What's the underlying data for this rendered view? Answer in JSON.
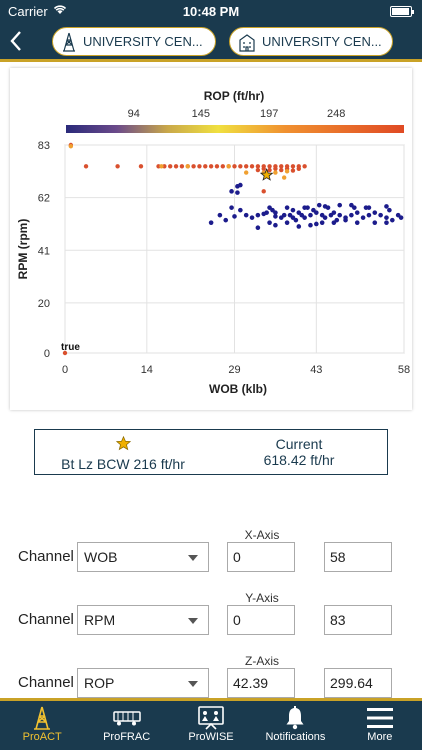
{
  "status_bar": {
    "carrier": "Carrier",
    "time": "10:48 PM"
  },
  "header": {
    "pills": [
      "UNIVERSITY CEN...",
      "UNIVERSITY CEN..."
    ]
  },
  "chart_data": {
    "type": "scatter",
    "title": "ROP (ft/hr)",
    "colorbar_ticks": [
      94,
      145,
      197,
      248
    ],
    "colorbar_range": [
      42.39,
      299.64
    ],
    "xlabel": "WOB (klb)",
    "ylabel": "RPM (rpm)",
    "xlim": [
      0,
      58
    ],
    "ylim": [
      0,
      83
    ],
    "xticks": [
      0,
      14,
      29,
      43,
      58
    ],
    "yticks": [
      0,
      20,
      41,
      62,
      83
    ],
    "annotation": "true",
    "star_point": {
      "x": 34.5,
      "y": 71
    },
    "points_red": [
      [
        1,
        83
      ],
      [
        3.6,
        74.5
      ],
      [
        9,
        74.5
      ],
      [
        13,
        74.5
      ],
      [
        16,
        74.5
      ],
      [
        17,
        74.5
      ],
      [
        18,
        74.5
      ],
      [
        19,
        74.5
      ],
      [
        20,
        74.5
      ],
      [
        21,
        74.5
      ],
      [
        22,
        74.5
      ],
      [
        23,
        74.5
      ],
      [
        24,
        74.5
      ],
      [
        25,
        74.5
      ],
      [
        26,
        74.5
      ],
      [
        27,
        74.5
      ],
      [
        28,
        74.5
      ],
      [
        29,
        74.5
      ],
      [
        30,
        74.5
      ],
      [
        31,
        74.5
      ],
      [
        32,
        74.5
      ],
      [
        33,
        74.5
      ],
      [
        34,
        74.5
      ],
      [
        35,
        74.5
      ],
      [
        36,
        74.5
      ],
      [
        37,
        74.5
      ],
      [
        38,
        74.5
      ],
      [
        39,
        74.5
      ],
      [
        40,
        74.5
      ],
      [
        41,
        74.5
      ],
      [
        34,
        73.5
      ],
      [
        36,
        73.5
      ],
      [
        38,
        73.5
      ],
      [
        40,
        73.5
      ],
      [
        33,
        73
      ],
      [
        35,
        73
      ],
      [
        37,
        73
      ],
      [
        39,
        72.8
      ],
      [
        34,
        64.5
      ],
      [
        0,
        0
      ]
    ],
    "points_orange": [
      [
        1,
        82.5
      ],
      [
        31,
        72
      ],
      [
        36,
        72
      ],
      [
        38,
        72.5
      ],
      [
        34,
        72
      ],
      [
        37.5,
        70
      ],
      [
        28,
        74.5
      ],
      [
        16.5,
        74.5
      ],
      [
        21,
        74.5
      ]
    ],
    "points_blue": [
      [
        25,
        52
      ],
      [
        26.5,
        55
      ],
      [
        27.5,
        53
      ],
      [
        28.5,
        58
      ],
      [
        29,
        54.5
      ],
      [
        29.5,
        64
      ],
      [
        30,
        57
      ],
      [
        31,
        55
      ],
      [
        32,
        54
      ],
      [
        33,
        55
      ],
      [
        34,
        55.5
      ],
      [
        34.5,
        56
      ],
      [
        35,
        58
      ],
      [
        35.5,
        57
      ],
      [
        36,
        56
      ],
      [
        37,
        54
      ],
      [
        37.5,
        55
      ],
      [
        38,
        58
      ],
      [
        38.5,
        55
      ],
      [
        39,
        54
      ],
      [
        39.5,
        53
      ],
      [
        40,
        56
      ],
      [
        40.5,
        55
      ],
      [
        41,
        54
      ],
      [
        41.5,
        58
      ],
      [
        42,
        55
      ],
      [
        42.5,
        57
      ],
      [
        43,
        56
      ],
      [
        43.5,
        59
      ],
      [
        44,
        55
      ],
      [
        44.5,
        54
      ],
      [
        45,
        58
      ],
      [
        45.5,
        55
      ],
      [
        46,
        56
      ],
      [
        47,
        55
      ],
      [
        48,
        54
      ],
      [
        49,
        55
      ],
      [
        49.5,
        58
      ],
      [
        50,
        56
      ],
      [
        51,
        54
      ],
      [
        51.5,
        58
      ],
      [
        52,
        55
      ],
      [
        53,
        56
      ],
      [
        54,
        55
      ],
      [
        55,
        54
      ],
      [
        55.5,
        57
      ],
      [
        56,
        53
      ],
      [
        57,
        55
      ],
      [
        35,
        52
      ],
      [
        36,
        51
      ],
      [
        38,
        52
      ],
      [
        40,
        50.5
      ],
      [
        42,
        51
      ],
      [
        43,
        51.5
      ],
      [
        44,
        52
      ],
      [
        46,
        52
      ],
      [
        50,
        52
      ],
      [
        53,
        52
      ],
      [
        55,
        52
      ],
      [
        57.5,
        54
      ],
      [
        39,
        57
      ],
      [
        41,
        58
      ],
      [
        44.5,
        58.5
      ],
      [
        47,
        59
      ],
      [
        49,
        59
      ],
      [
        52,
        58
      ],
      [
        55,
        58.5
      ],
      [
        33,
        50
      ],
      [
        36,
        54.5
      ],
      [
        46.5,
        53
      ],
      [
        48,
        53
      ],
      [
        29.5,
        66.5
      ],
      [
        30,
        67
      ],
      [
        28.5,
        64.5
      ]
    ]
  },
  "info": {
    "best_label": "Bt Lz BCW 216 ft/hr",
    "current_label": "Current",
    "current_value": "618.42 ft/hr"
  },
  "axes": {
    "x": {
      "title": "X-Axis",
      "channel_label": "Channel",
      "channel": "WOB",
      "min": "0",
      "max": "58"
    },
    "y": {
      "title": "Y-Axis",
      "channel_label": "Channel",
      "channel": "RPM",
      "min": "0",
      "max": "83"
    },
    "z": {
      "title": "Z-Axis",
      "channel_label": "Channel",
      "channel": "ROP",
      "min": "42.39",
      "max": "299.64"
    }
  },
  "tabs": [
    {
      "label": "ProACT",
      "icon": "derrick-icon",
      "active": true
    },
    {
      "label": "ProFRAC",
      "icon": "truck-icon",
      "active": false
    },
    {
      "label": "ProWISE",
      "icon": "presentation-icon",
      "active": false
    },
    {
      "label": "Notifications",
      "icon": "bell-icon",
      "active": false
    },
    {
      "label": "More",
      "icon": "hamburger-icon",
      "active": false
    }
  ],
  "colors": {
    "primary": "#1a3a4e",
    "accent": "#c9a227",
    "active_tab": "#f2c230",
    "red_point": "#d9502e",
    "blue_point": "#1c1c8c",
    "orange_point": "#f0a030"
  }
}
